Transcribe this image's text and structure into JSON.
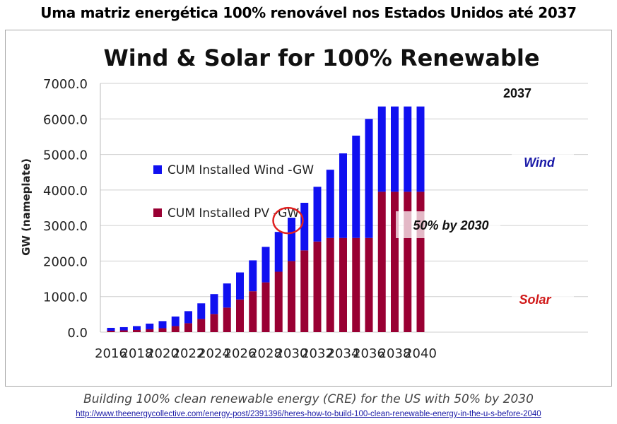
{
  "page": {
    "title": "Uma matriz energética 100% renovável nos Estados Unidos até 2037",
    "caption": "Building 100% clean renewable energy (CRE) for the US with 50% by 2030",
    "source_url": "http://www.theenergycollective.com/energy-post/2391396/heres-how-to-build-100-clean-renewable-energy-in-the-u-s-before-2040"
  },
  "colors": {
    "wind": "#1010f0",
    "pv": "#990033",
    "highlight_circle": "#e02020",
    "overlay_band": "#ffffff"
  },
  "chart_data": {
    "type": "bar",
    "stacked": true,
    "title": "Wind & Solar for 100% Renewable",
    "ylabel": "GW (nameplate)",
    "xlabel": "",
    "ylim": [
      0,
      7000
    ],
    "yticks": [
      "0.0",
      "1000.0",
      "2000.0",
      "3000.0",
      "4000.0",
      "5000.0",
      "6000.0",
      "7000.0"
    ],
    "grid": true,
    "legend_position": "left",
    "categories": [
      "2016",
      "2017",
      "2018",
      "2019",
      "2020",
      "2021",
      "2022",
      "2023",
      "2024",
      "2025",
      "2026",
      "2027",
      "2028",
      "2029",
      "2030",
      "2031",
      "2032",
      "2033",
      "2034",
      "2035",
      "2036",
      "2037",
      "2038",
      "2039",
      "2040"
    ],
    "xtick_labels": [
      "2016",
      "2018",
      "2020",
      "2022",
      "2024",
      "2026",
      "2028",
      "2030",
      "2032",
      "2034",
      "2036",
      "2038",
      "2040"
    ],
    "series": [
      {
        "name": "CUM Installed PV -GW",
        "color": "#990033",
        "values": [
          40,
          50,
          60,
          80,
          110,
          170,
          250,
          370,
          510,
          690,
          920,
          1150,
          1400,
          1700,
          2000,
          2300,
          2550,
          2650,
          2650,
          2650,
          2650,
          3950,
          3950,
          3950,
          3950
        ]
      },
      {
        "name": "CUM Installed Wind -GW",
        "color": "#1010f0",
        "values": [
          80,
          90,
          110,
          160,
          200,
          270,
          340,
          440,
          560,
          680,
          760,
          870,
          1000,
          1120,
          1220,
          1340,
          1540,
          1920,
          2380,
          2880,
          3350,
          2400,
          2400,
          2400,
          2400
        ]
      }
    ],
    "annotations": [
      {
        "text": "2037"
      },
      {
        "text": "50% by 2030"
      },
      {
        "text": "Wind"
      },
      {
        "text": "Solar"
      }
    ]
  }
}
